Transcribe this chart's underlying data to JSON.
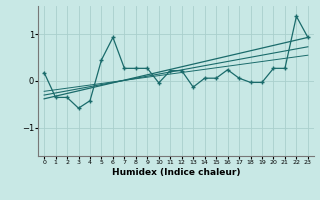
{
  "xlabel": "Humidex (Indice chaleur)",
  "bg_color": "#c8e8e5",
  "line_color": "#1a6b6b",
  "grid_color": "#aacfcc",
  "xlim": [
    -0.5,
    23.5
  ],
  "ylim": [
    -1.6,
    1.6
  ],
  "xticks": [
    0,
    1,
    2,
    3,
    4,
    5,
    6,
    7,
    8,
    9,
    10,
    11,
    12,
    13,
    14,
    15,
    16,
    17,
    18,
    19,
    20,
    21,
    22,
    23
  ],
  "yticks": [
    -1,
    0,
    1
  ],
  "x_data": [
    0,
    1,
    2,
    3,
    4,
    5,
    6,
    7,
    8,
    9,
    10,
    11,
    12,
    13,
    14,
    15,
    16,
    17,
    18,
    19,
    20,
    21,
    22,
    23
  ],
  "y_main": [
    0.18,
    -0.35,
    -0.35,
    -0.58,
    -0.42,
    0.45,
    0.93,
    0.27,
    0.27,
    0.27,
    -0.04,
    0.22,
    0.22,
    -0.13,
    0.06,
    0.06,
    0.24,
    0.06,
    -0.03,
    -0.03,
    0.27,
    0.27,
    1.38,
    0.93
  ],
  "trend1_x": [
    0,
    23
  ],
  "trend1_y": [
    -0.38,
    0.93
  ],
  "trend2_x": [
    0,
    23
  ],
  "trend2_y": [
    -0.3,
    0.73
  ],
  "trend3_x": [
    0,
    23
  ],
  "trend3_y": [
    -0.22,
    0.55
  ]
}
